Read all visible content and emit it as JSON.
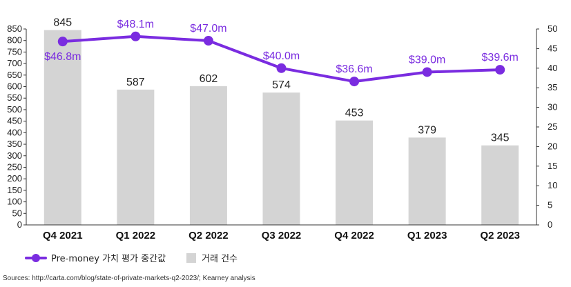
{
  "chart_data": {
    "type": "bar+line",
    "categories": [
      "Q4 2021",
      "Q1 2022",
      "Q2 2022",
      "Q3 2022",
      "Q4 2022",
      "Q1 2023",
      "Q2 2023"
    ],
    "series": [
      {
        "name": "거래 건수",
        "kind": "bar",
        "axis": "left",
        "color": "#d4d4d4",
        "values": [
          845,
          587,
          602,
          574,
          453,
          379,
          345
        ],
        "labels": [
          "845",
          "587",
          "602",
          "574",
          "453",
          "379",
          "345"
        ]
      },
      {
        "name": "Pre-money 가치 평가 중간값",
        "kind": "line",
        "axis": "right",
        "color": "#7a2ce0",
        "values": [
          46.8,
          48.1,
          47.0,
          40.0,
          36.6,
          39.0,
          39.6
        ],
        "labels": [
          "$46.8m",
          "$48.1m",
          "$47.0m",
          "$40.0m",
          "$36.6m",
          "$39.0m",
          "$39.6m"
        ]
      }
    ],
    "y_left": {
      "min": 0,
      "max": 850,
      "ticks": [
        "0",
        "50",
        "100",
        "150",
        "200",
        "250",
        "300",
        "350",
        "400",
        "450",
        "500",
        "550",
        "600",
        "650",
        "700",
        "750",
        "800",
        "850"
      ]
    },
    "y_right": {
      "min": 0,
      "max": 50,
      "ticks": [
        "0",
        "5",
        "10",
        "15",
        "20",
        "25",
        "30",
        "35",
        "40",
        "45",
        "50"
      ]
    },
    "grid": false,
    "legend_position": "bottom-left"
  },
  "legend": {
    "line_label": "Pre-money 가치 평가 중간값",
    "bar_label": "거래 건수"
  },
  "source": "Sources: http://carta.com/blog/state-of-private-markets-q2-2023/; Kearney analysis"
}
